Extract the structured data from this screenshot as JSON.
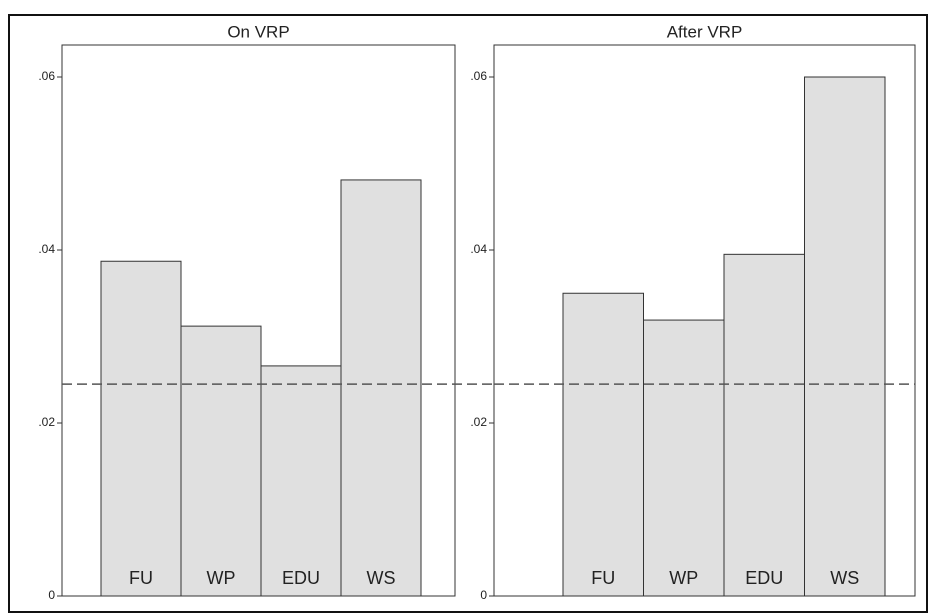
{
  "chart_data": [
    {
      "type": "bar",
      "title": "On VRP",
      "categories": [
        "FU",
        "WP",
        "EDU",
        "WS"
      ],
      "values": [
        0.0387,
        0.0312,
        0.0266,
        0.0481
      ],
      "color": "#e0e0e0",
      "reference_line": 0.0245,
      "ylim": [
        0,
        0.0637
      ],
      "yticks": [
        0,
        {
          "value": 0.02,
          "label": ".02"
        },
        {
          "value": 0.04,
          "label": ".04"
        },
        {
          "value": 0.06,
          "label": ".06"
        }
      ]
    },
    {
      "type": "bar",
      "title": "After VRP",
      "categories": [
        "FU",
        "WP",
        "EDU",
        "WS"
      ],
      "values": [
        0.035,
        0.0319,
        0.0395,
        0.06
      ],
      "color": "#e0e0e0",
      "reference_line": 0.0245,
      "ylim": [
        0,
        0.0637
      ],
      "yticks": [
        0,
        {
          "value": 0.02,
          "label": ".02"
        },
        {
          "value": 0.04,
          "label": ".04"
        },
        {
          "value": 0.06,
          "label": ".06"
        }
      ]
    }
  ]
}
